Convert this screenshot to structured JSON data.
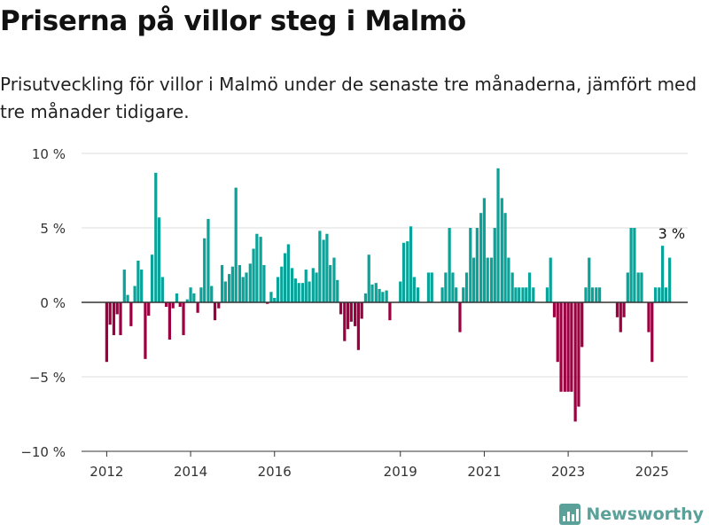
{
  "title": "Priserna på villor steg i Malmö",
  "subtitle": "Prisutveckling för villor i Malmö under de senaste tre månaderna, jämfört med tre månader tidigare.",
  "brand": "Newsworthy",
  "colors": {
    "positive": "#0aa399",
    "negative": "#9b0040",
    "grid": "#dddddd",
    "zero": "#333333"
  },
  "chart_data": {
    "type": "bar",
    "ylim": [
      -10,
      10
    ],
    "xlim": [
      2011.4,
      2025.85
    ],
    "yticks": [
      {
        "value": 10,
        "label": "10 %"
      },
      {
        "value": 5,
        "label": "5 %"
      },
      {
        "value": 0,
        "label": "0 %"
      },
      {
        "value": -5,
        "label": "−5 %"
      },
      {
        "value": -10,
        "label": "−10 %"
      }
    ],
    "xticks": [
      {
        "value": 2012,
        "label": "2012"
      },
      {
        "value": 2014,
        "label": "2014"
      },
      {
        "value": 2016,
        "label": "2016"
      },
      {
        "value": 2019,
        "label": "2019"
      },
      {
        "value": 2021,
        "label": "2021"
      },
      {
        "value": 2023,
        "label": "2023"
      },
      {
        "value": 2025,
        "label": "2025"
      }
    ],
    "annotation": {
      "x": 2025.17,
      "y": 3,
      "text": "3 %"
    },
    "bars": [
      [
        2012.0,
        -4.0
      ],
      [
        2012.08,
        -1.5
      ],
      [
        2012.17,
        -2.2
      ],
      [
        2012.25,
        -0.8
      ],
      [
        2012.33,
        -2.2
      ],
      [
        2012.42,
        2.2
      ],
      [
        2012.5,
        0.5
      ],
      [
        2012.58,
        -1.6
      ],
      [
        2012.67,
        1.1
      ],
      [
        2012.75,
        2.8
      ],
      [
        2012.83,
        2.2
      ],
      [
        2012.92,
        -3.8
      ],
      [
        2013.0,
        -0.9
      ],
      [
        2013.08,
        3.2
      ],
      [
        2013.17,
        8.7
      ],
      [
        2013.25,
        5.7
      ],
      [
        2013.33,
        1.7
      ],
      [
        2013.42,
        -0.3
      ],
      [
        2013.5,
        -2.5
      ],
      [
        2013.58,
        -0.4
      ],
      [
        2013.67,
        0.6
      ],
      [
        2013.75,
        -0.3
      ],
      [
        2013.83,
        -2.2
      ],
      [
        2013.92,
        0.2
      ],
      [
        2014.0,
        1.0
      ],
      [
        2014.08,
        0.6
      ],
      [
        2014.17,
        -0.7
      ],
      [
        2014.25,
        1.0
      ],
      [
        2014.33,
        4.3
      ],
      [
        2014.42,
        5.6
      ],
      [
        2014.5,
        1.1
      ],
      [
        2014.58,
        -1.2
      ],
      [
        2014.67,
        -0.4
      ],
      [
        2014.75,
        2.5
      ],
      [
        2014.83,
        1.4
      ],
      [
        2014.92,
        1.9
      ],
      [
        2015.0,
        2.4
      ],
      [
        2015.08,
        7.7
      ],
      [
        2015.17,
        2.5
      ],
      [
        2015.25,
        1.7
      ],
      [
        2015.33,
        2.0
      ],
      [
        2015.42,
        2.6
      ],
      [
        2015.5,
        3.6
      ],
      [
        2015.58,
        4.6
      ],
      [
        2015.67,
        4.4
      ],
      [
        2015.75,
        2.5
      ],
      [
        2015.83,
        -0.1
      ],
      [
        2015.92,
        0.7
      ],
      [
        2016.0,
        0.3
      ],
      [
        2016.08,
        1.7
      ],
      [
        2016.17,
        2.4
      ],
      [
        2016.25,
        3.3
      ],
      [
        2016.33,
        3.9
      ],
      [
        2016.42,
        2.3
      ],
      [
        2016.5,
        1.6
      ],
      [
        2016.58,
        1.3
      ],
      [
        2016.67,
        1.3
      ],
      [
        2016.75,
        2.2
      ],
      [
        2016.83,
        1.4
      ],
      [
        2016.92,
        2.3
      ],
      [
        2017.0,
        2.0
      ],
      [
        2017.08,
        4.8
      ],
      [
        2017.17,
        4.2
      ],
      [
        2017.25,
        4.6
      ],
      [
        2017.33,
        2.5
      ],
      [
        2017.42,
        3.0
      ],
      [
        2017.5,
        1.5
      ],
      [
        2017.58,
        -0.8
      ],
      [
        2017.67,
        -2.6
      ],
      [
        2017.75,
        -1.8
      ],
      [
        2017.83,
        -1.3
      ],
      [
        2017.92,
        -1.6
      ],
      [
        2018.0,
        -3.2
      ],
      [
        2018.08,
        -1.1
      ],
      [
        2018.17,
        0.6
      ],
      [
        2018.25,
        3.2
      ],
      [
        2018.33,
        1.2
      ],
      [
        2018.42,
        1.3
      ],
      [
        2018.5,
        0.9
      ],
      [
        2018.58,
        0.7
      ],
      [
        2018.67,
        0.8
      ],
      [
        2018.75,
        -1.2
      ],
      [
        2019.0,
        1.4
      ],
      [
        2019.08,
        4.0
      ],
      [
        2019.17,
        4.1
      ],
      [
        2019.25,
        5.1
      ],
      [
        2019.33,
        1.7
      ],
      [
        2019.42,
        1.0
      ],
      [
        2019.67,
        2.0
      ],
      [
        2019.75,
        2.0
      ],
      [
        2020.0,
        1.0
      ],
      [
        2020.08,
        2.0
      ],
      [
        2020.17,
        5.0
      ],
      [
        2020.25,
        2.0
      ],
      [
        2020.33,
        1.0
      ],
      [
        2020.42,
        -2.0
      ],
      [
        2020.5,
        1.0
      ],
      [
        2020.58,
        2.0
      ],
      [
        2020.67,
        5.0
      ],
      [
        2020.75,
        3.0
      ],
      [
        2020.83,
        5.0
      ],
      [
        2020.92,
        6.0
      ],
      [
        2021.0,
        7.0
      ],
      [
        2021.08,
        3.0
      ],
      [
        2021.17,
        3.0
      ],
      [
        2021.25,
        5.0
      ],
      [
        2021.33,
        9.0
      ],
      [
        2021.42,
        7.0
      ],
      [
        2021.5,
        6.0
      ],
      [
        2021.58,
        3.0
      ],
      [
        2021.67,
        2.0
      ],
      [
        2021.75,
        1.0
      ],
      [
        2021.83,
        1.0
      ],
      [
        2021.92,
        1.0
      ],
      [
        2022.0,
        1.0
      ],
      [
        2022.08,
        2.0
      ],
      [
        2022.17,
        1.0
      ],
      [
        2022.5,
        1.0
      ],
      [
        2022.58,
        3.0
      ],
      [
        2022.67,
        -1.0
      ],
      [
        2022.75,
        -4.0
      ],
      [
        2022.83,
        -6.0
      ],
      [
        2022.92,
        -6.0
      ],
      [
        2023.0,
        -6.0
      ],
      [
        2023.08,
        -6.0
      ],
      [
        2023.17,
        -8.0
      ],
      [
        2023.25,
        -7.0
      ],
      [
        2023.33,
        -3.0
      ],
      [
        2023.42,
        1.0
      ],
      [
        2023.5,
        3.0
      ],
      [
        2023.58,
        1.0
      ],
      [
        2023.67,
        1.0
      ],
      [
        2023.75,
        1.0
      ],
      [
        2024.17,
        -1.0
      ],
      [
        2024.25,
        -2.0
      ],
      [
        2024.33,
        -1.0
      ],
      [
        2024.42,
        2.0
      ],
      [
        2024.5,
        5.0
      ],
      [
        2024.58,
        5.0
      ],
      [
        2024.67,
        2.0
      ],
      [
        2024.75,
        2.0
      ],
      [
        2024.92,
        -2.0
      ],
      [
        2025.0,
        -4.0
      ],
      [
        2025.08,
        1.0
      ],
      [
        2025.17,
        1.0
      ],
      [
        2025.25,
        3.8
      ],
      [
        2025.33,
        1.0
      ],
      [
        2025.42,
        3.0
      ]
    ]
  }
}
